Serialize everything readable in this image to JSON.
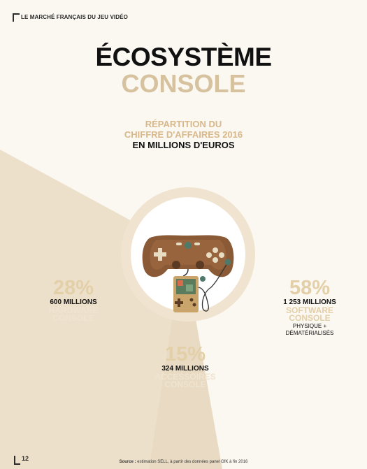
{
  "header": {
    "section": "LE MARCHÉ FRANÇAIS DU JEU VIDÉO"
  },
  "title": {
    "line1": "ÉCOSYSTÈME",
    "line2": "CONSOLE"
  },
  "subtitle": {
    "line1": "RÉPARTITION DU",
    "line2": "CHIFFRE D'AFFAIRES 2016",
    "line3": "EN MILLIONS D'EUROS"
  },
  "segments": {
    "hardware": {
      "percent": "28%",
      "amount": "600 MILLIONS",
      "label1": "HARDWARE",
      "label2": "CONSOLE",
      "value": 28
    },
    "software": {
      "percent": "58%",
      "amount": "1 253 MILLIONS",
      "label1": "SOFTWARE",
      "label2": "CONSOLE",
      "note1": "PHYSIQUE +",
      "note2": "DÉMATÉRIALISÉS",
      "value": 58
    },
    "accessoires": {
      "percent": "15%",
      "amount": "324 MILLIONS",
      "label1": "ACCESSOIRES",
      "label2": "CONSOLE",
      "value": 15
    }
  },
  "footer": {
    "page_number": "12",
    "source_label": "Source :",
    "source_text": " estimation SELL, à partir des données panel GfK à fin 2016"
  },
  "colors": {
    "background": "#fbf7f1",
    "wedge": "#ede0cb",
    "accent": "#d6c29e",
    "ring": "#f0e4d0"
  },
  "icons": {
    "center": "gamepad-icon"
  }
}
